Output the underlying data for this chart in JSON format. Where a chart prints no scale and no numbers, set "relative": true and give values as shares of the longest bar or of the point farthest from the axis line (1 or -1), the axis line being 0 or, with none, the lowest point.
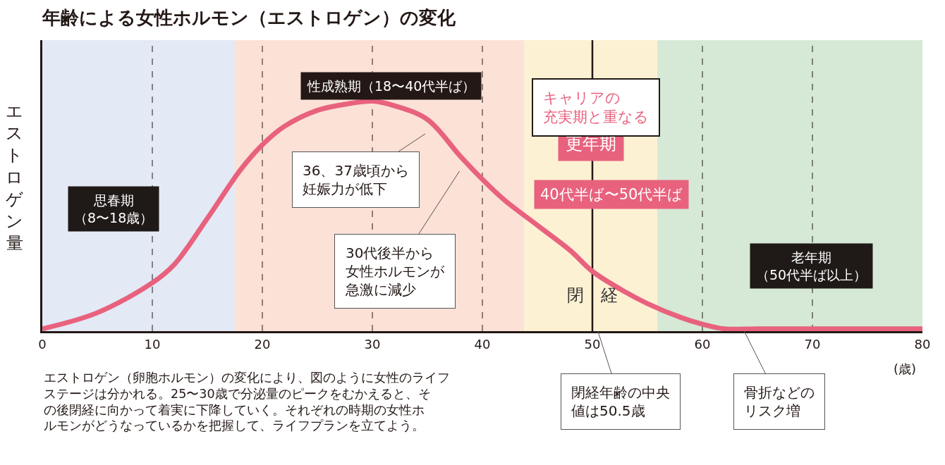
{
  "chart_data": {
    "type": "line",
    "title": "年齢による女性ホルモン（エストロゲン）の変化",
    "ylabel": "エストロゲン量",
    "xlabel": "(歳)",
    "relative": true,
    "x": [
      0,
      5,
      10,
      12,
      15,
      18,
      20,
      22,
      25,
      28,
      30,
      32,
      35,
      38,
      40,
      42,
      45,
      48,
      50,
      53,
      55,
      58,
      60,
      62,
      65,
      70,
      75,
      80
    ],
    "series": [
      {
        "color": "#e8627e",
        "values": [
          0.01,
          0.08,
          0.21,
          0.29,
          0.49,
          0.7,
          0.81,
          0.89,
          0.96,
          0.99,
          1.0,
          0.98,
          0.92,
          0.76,
          0.66,
          0.57,
          0.46,
          0.35,
          0.26,
          0.17,
          0.12,
          0.06,
          0.03,
          0.01,
          0.01,
          0.01,
          0.01,
          0.01
        ]
      }
    ],
    "xlim": [
      0,
      80
    ],
    "xticks": [
      0,
      10,
      20,
      30,
      40,
      50,
      60,
      70,
      80
    ],
    "bands": [
      {
        "axis": "x",
        "from": 0,
        "to": 17.5,
        "label": "思春期（8〜18歳）",
        "color": "#e3e9f5"
      },
      {
        "axis": "x",
        "from": 17.5,
        "to": 43.8,
        "label": "性成熟期（18〜40代半ば）",
        "color": "#fbe1d6"
      },
      {
        "axis": "x",
        "from": 43.8,
        "to": 55.9,
        "label": "更年期",
        "color": "#fdf1d3"
      },
      {
        "axis": "x",
        "from": 55.9,
        "to": 80,
        "label": "老年期（50代半ば以上）",
        "color": "#d5e9d6"
      }
    ],
    "ref_lines": [
      {
        "axis": "x",
        "value": 10,
        "line_style": "dashed"
      },
      {
        "axis": "x",
        "value": 20,
        "line_style": "dashed"
      },
      {
        "axis": "x",
        "value": 30,
        "line_style": "dashed"
      },
      {
        "axis": "x",
        "value": 40,
        "line_style": "dashed"
      },
      {
        "axis": "x",
        "value": 50,
        "line_style": "solid",
        "label": "閉　経"
      },
      {
        "axis": "x",
        "value": 60,
        "line_style": "dashed"
      },
      {
        "axis": "x",
        "value": 70,
        "line_style": "dashed"
      }
    ],
    "annotations": [
      {
        "text": "閉経年齢の中央値は50.5歳",
        "x": 50.5,
        "y": 0
      },
      {
        "text": "骨折などのリスク増",
        "x": 63.8,
        "y": 0
      },
      "36、37歳頃から妊娠力が低下",
      "30代後半から女性ホルモンが急激に減少",
      "キャリアの充実期と重なる",
      "40代半ば〜50代半ば",
      "エストロゲン（卵胞ホルモン）の変化により、図のように女性のライフステージは分かれる。25〜30歳で分泌量のピークをむかえると、その後閉経に向かって着実に下降していく。それぞれの時期の女性ホルモンがどうなっているかを把握して、ライフプランを立てよう。"
    ]
  }
}
